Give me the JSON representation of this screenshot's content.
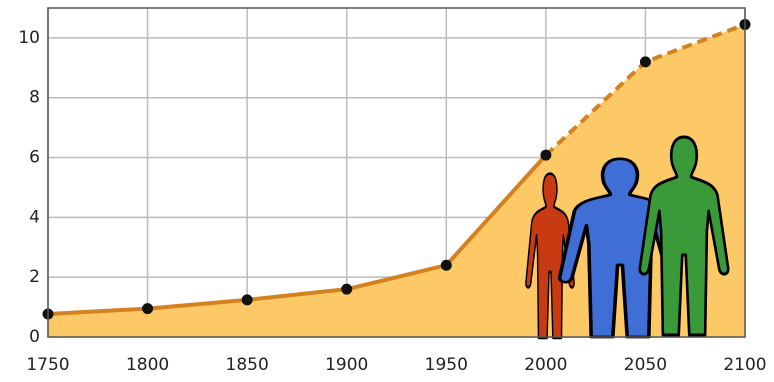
{
  "chart_data": {
    "type": "area",
    "x": [
      1750,
      1800,
      1850,
      1900,
      1950,
      2000,
      2050,
      2100
    ],
    "values": [
      0.77,
      0.95,
      1.24,
      1.6,
      2.4,
      6.08,
      9.2,
      10.45
    ],
    "projection_start": 2000,
    "xlim": [
      1750,
      2100
    ],
    "xticks": [
      1750,
      1800,
      1850,
      1900,
      1950,
      2000,
      2050,
      2100
    ],
    "ylim": [
      0,
      11
    ],
    "yticks": [
      0,
      2,
      4,
      6,
      8,
      10
    ],
    "grid": true,
    "fill_color": "#fdc866",
    "line_color": "#d4821f",
    "point_color": "#111111"
  }
}
